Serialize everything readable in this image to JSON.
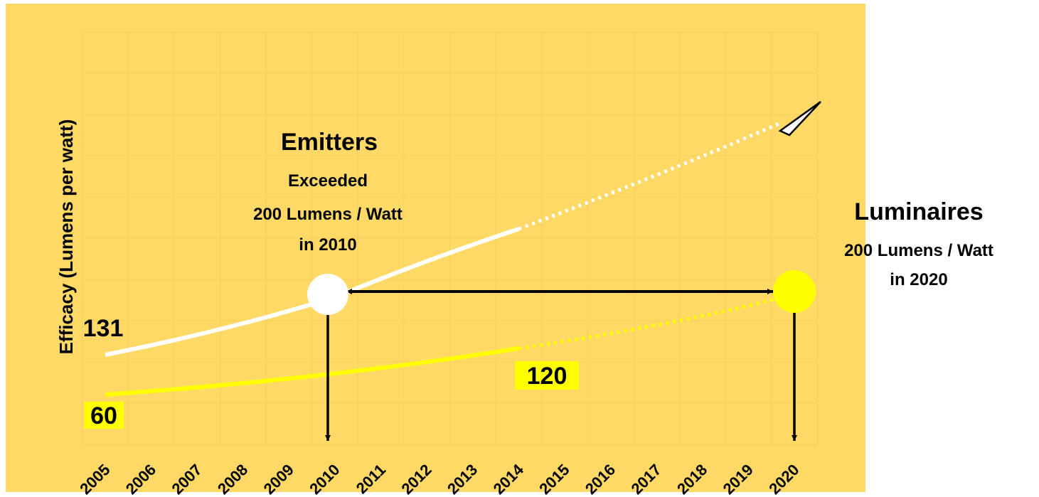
{
  "chart_data": {
    "type": "line",
    "title": "",
    "xlabel": "",
    "ylabel": "Efficacy (Lumens per watt)",
    "x_ticks": [
      "2005",
      "2006",
      "2007",
      "2008",
      "2009",
      "2010",
      "2011",
      "2012",
      "2013",
      "2014",
      "2015",
      "2016",
      "2017",
      "2018",
      "2019",
      "2020"
    ],
    "grid": true,
    "colors": {
      "background": "#FFD966",
      "gridline": "#F5CE5C",
      "emitters": "#FFFFFF",
      "luminaires": "#FFFF00",
      "arrow": "#000000"
    },
    "series": [
      {
        "name": "",
        "style": "solid-then-dotted",
        "points": [
          {
            "x": 2005,
            "y": 131
          },
          {
            "x": 2010,
            "y": 200
          },
          {
            "x": 2014,
            "y": 275
          },
          {
            "x": 2020,
            "y": 410
          }
        ]
      },
      {
        "name": "",
        "style": "solid-then-dotted",
        "points": [
          {
            "x": 2005,
            "y": 60
          },
          {
            "x": 2010,
            "y": 90
          },
          {
            "x": 2014,
            "y": 120
          },
          {
            "x": 2020,
            "y": 200
          }
        ]
      }
    ],
    "value_labels": {
      "emitters_start": "131",
      "luminaires_start": "60",
      "luminaires_2014": "120"
    },
    "annotations": {
      "emitters": {
        "title": "Emitters",
        "line1": "Exceeded",
        "line2": "200 Lumens / Watt",
        "line3": "in 2010"
      },
      "luminaires": {
        "title": "Luminaires",
        "line1": "200 Lumens / Watt",
        "line2": "in 2020"
      }
    }
  }
}
